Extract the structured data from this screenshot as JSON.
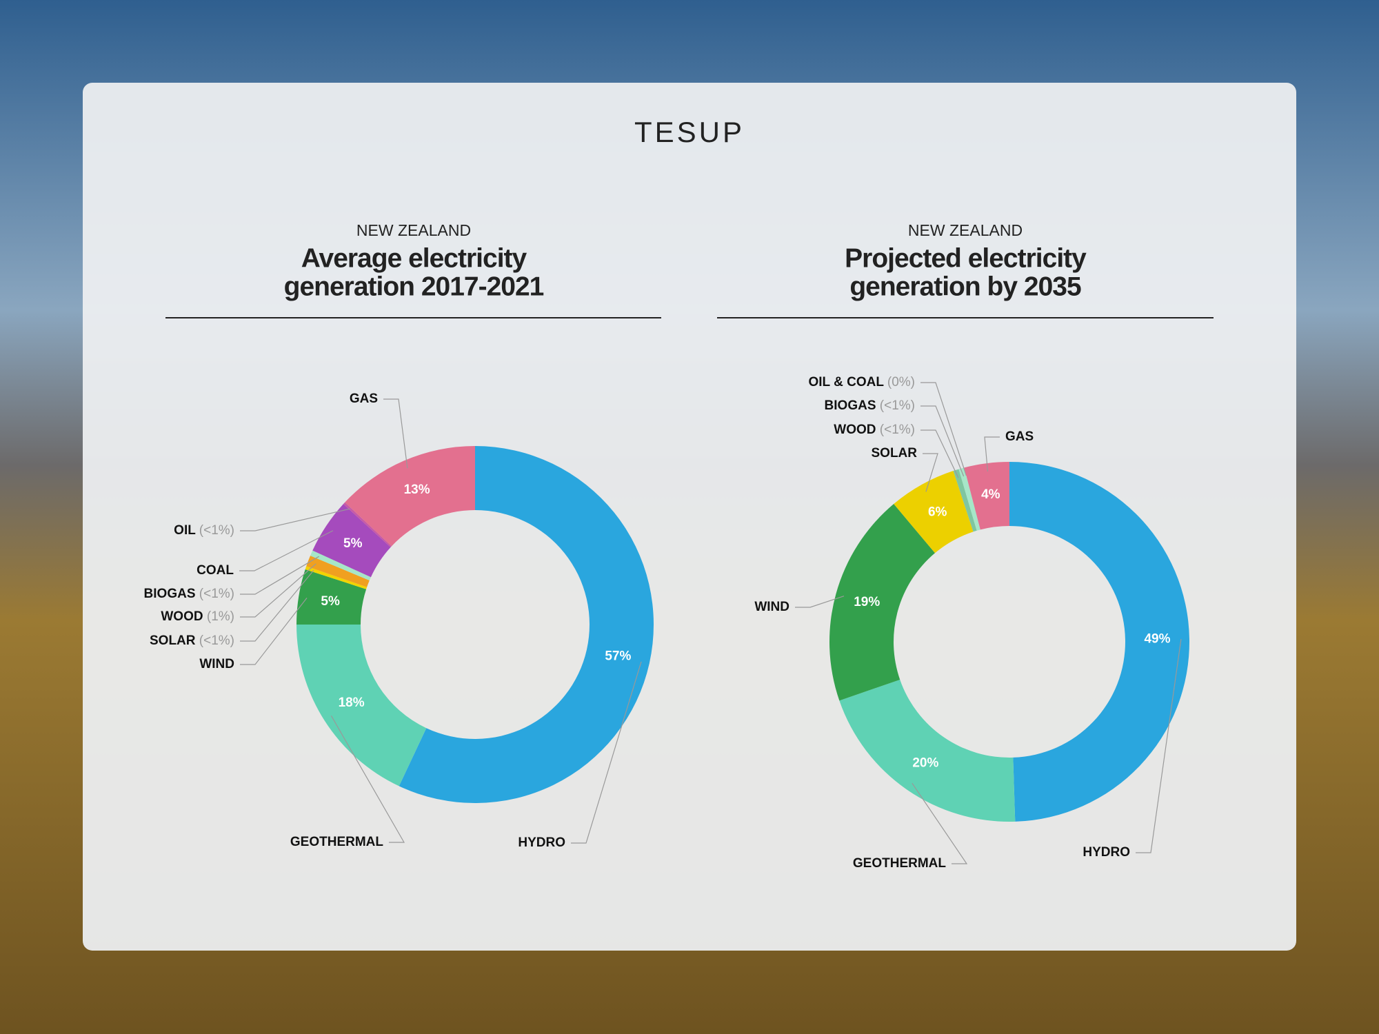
{
  "header": {
    "logo": "TESUP"
  },
  "chart_data": [
    {
      "type": "donut",
      "supertitle": "NEW ZEALAND",
      "title": [
        "Average electricity",
        "generation 2017-2021"
      ],
      "categories": [
        "HYDRO",
        "GEOTHERMAL",
        "WIND",
        "SOLAR",
        "WOOD",
        "BIOGAS",
        "COAL",
        "OIL",
        "GAS"
      ],
      "values": [
        57,
        18,
        5,
        0.3,
        1,
        0.5,
        5,
        0.2,
        13
      ],
      "value_labels": [
        "57%",
        "18%",
        "5%",
        "(<1%)",
        "(1%)",
        "(<1%)",
        "5%",
        "(<1%)",
        "13%"
      ],
      "colors": [
        "#2aa6de",
        "#5fd2b4",
        "#33a04c",
        "#f2d400",
        "#f0a020",
        "#a6e6c8",
        "#a54bbd",
        "#c75aa6",
        "#e3708f"
      ]
    },
    {
      "type": "donut",
      "supertitle": "NEW ZEALAND",
      "title": [
        "Projected electricity",
        "generation by 2035"
      ],
      "categories": [
        "HYDRO",
        "GEOTHERMAL",
        "WIND",
        "SOLAR",
        "WOOD",
        "BIOGAS",
        "OIL & COAL",
        "GAS"
      ],
      "values": [
        49,
        20,
        19,
        6,
        0.5,
        0.5,
        0,
        4
      ],
      "value_labels": [
        "49%",
        "20%",
        "19%",
        "6%",
        "(<1%)",
        "(<1%)",
        "(0%)",
        "4%"
      ],
      "colors": [
        "#2aa6de",
        "#5fd2b4",
        "#33a04c",
        "#ecd000",
        "#7fc6a0",
        "#a6e6c8",
        "#a54bbd",
        "#e3708f"
      ]
    }
  ]
}
